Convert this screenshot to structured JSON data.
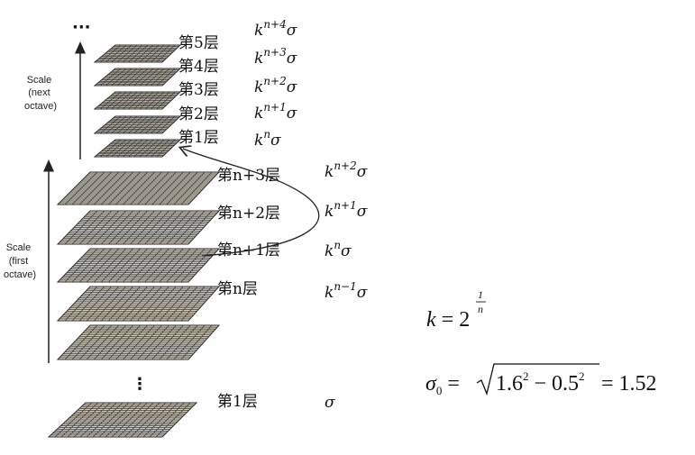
{
  "top_ellipsis": "···",
  "next_octave": {
    "axis_label_lines": [
      "Scale",
      "(next",
      "octave)"
    ],
    "layers": [
      {
        "label": "第5层",
        "scale_base": "k",
        "scale_exp": "n+4",
        "scale_tail": "σ"
      },
      {
        "label": "第4层",
        "scale_base": "k",
        "scale_exp": "n+3",
        "scale_tail": "σ"
      },
      {
        "label": "第3层",
        "scale_base": "k",
        "scale_exp": "n+2",
        "scale_tail": "σ"
      },
      {
        "label": "第2层",
        "scale_base": "k",
        "scale_exp": "n+1",
        "scale_tail": "σ"
      },
      {
        "label": "第1层",
        "scale_base": "k",
        "scale_exp": "n",
        "scale_tail": "σ"
      }
    ]
  },
  "first_octave": {
    "axis_label_lines": [
      "Scale",
      "(first",
      "octave)"
    ],
    "layers": [
      {
        "label": "第n+3层",
        "scale_base": "k",
        "scale_exp": "n+2",
        "scale_tail": "σ"
      },
      {
        "label": "第n+2层",
        "scale_base": "k",
        "scale_exp": "n+1",
        "scale_tail": "σ"
      },
      {
        "label": "第n+1层",
        "scale_base": "k",
        "scale_exp": "n",
        "scale_tail": "σ"
      },
      {
        "label": "第n层",
        "scale_base": "k",
        "scale_exp": "n−1",
        "scale_tail": "σ"
      },
      {
        "label": "",
        "scale_base": "",
        "scale_exp": "",
        "scale_tail": ""
      }
    ],
    "vertical_ellipsis": "⋮",
    "bottom_layer": {
      "label": "第1层",
      "scale": "σ"
    }
  },
  "formulas": {
    "k_lhs": "k",
    "k_eq": " = 2",
    "k_exp_num": "1",
    "k_exp_den": "n",
    "sigma": "σ",
    "sigma_sub": "0",
    "sigma_eq": " = ",
    "radicand": "1.6",
    "radicand_exp1": "2",
    "radicand_mid": " − 0.5",
    "radicand_exp2": "2",
    "result": " = 1.52"
  }
}
